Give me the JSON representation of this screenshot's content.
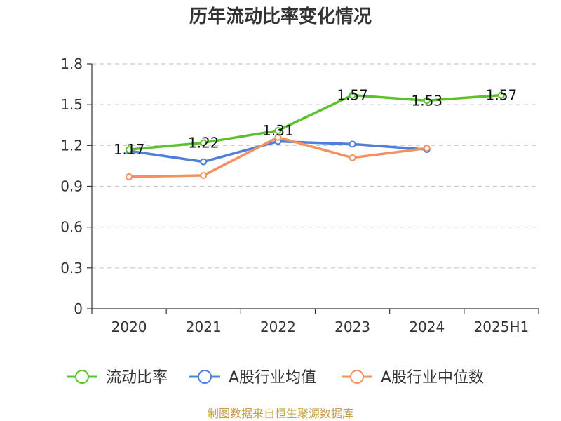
{
  "chart_data": {
    "type": "line",
    "title": "历年流动比率变化情况",
    "categories": [
      "2020",
      "2021",
      "2022",
      "2023",
      "2024",
      "2025H1"
    ],
    "ylim": [
      0,
      1.8
    ],
    "yticks": [
      0,
      0.3,
      0.6,
      0.9,
      1.2,
      1.5,
      1.8
    ],
    "ytick_labels": [
      "0",
      "0.3",
      "0.6",
      "0.9",
      "1.2",
      "1.5",
      "1.8"
    ],
    "grid": true,
    "legend_position": "bottom",
    "series": [
      {
        "name": "流动比率",
        "color": "#5cc12c",
        "values": [
          1.17,
          1.22,
          1.31,
          1.57,
          1.53,
          1.57
        ],
        "labels": [
          "1.17",
          "1.22",
          "1.31",
          "1.57",
          "1.53",
          "1.57"
        ]
      },
      {
        "name": "A股行业均值",
        "color": "#4f7fdc",
        "values": [
          1.16,
          1.08,
          1.23,
          1.21,
          1.17,
          null
        ]
      },
      {
        "name": "A股行业中位数",
        "color": "#f5915f",
        "values": [
          0.97,
          0.98,
          1.26,
          1.11,
          1.18,
          null
        ]
      }
    ],
    "source": "制图数据来自恒生聚源数据库"
  }
}
